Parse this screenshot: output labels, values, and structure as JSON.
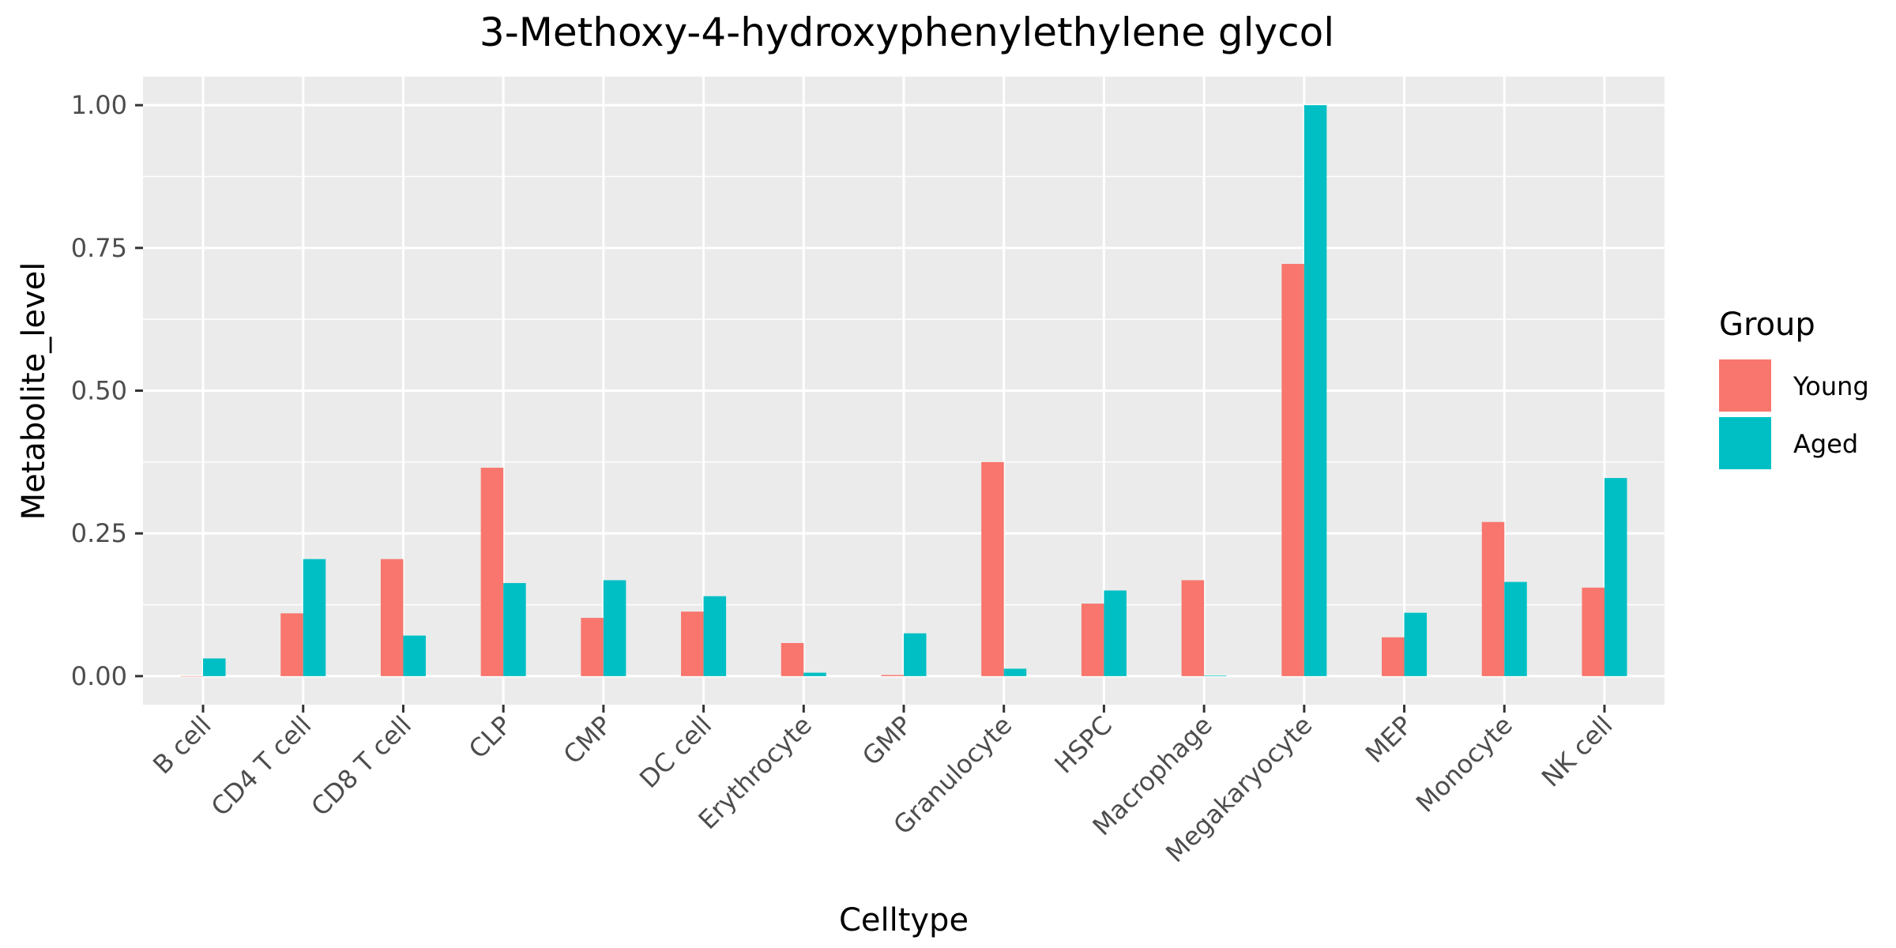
{
  "chart_data": {
    "type": "bar",
    "title": "3-Methoxy-4-hydroxyphenylethylene glycol",
    "xlabel": "Celltype",
    "ylabel": "Metabolite_level",
    "ylim": [
      -0.05,
      1.05
    ],
    "yticks": [
      0.0,
      0.25,
      0.5,
      0.75,
      1.0
    ],
    "ytick_labels": [
      "0.00",
      "0.25",
      "0.50",
      "0.75",
      "1.00"
    ],
    "grid": true,
    "legend_position": "right",
    "categories": [
      "B cell",
      "CD4 T cell",
      "CD8 T cell",
      "CLP",
      "CMP",
      "DC cell",
      "Erythrocyte",
      "GMP",
      "Granulocyte",
      "HSPC",
      "Macrophage",
      "Megakaryocyte",
      "MEP",
      "Monocyte",
      "NK cell"
    ],
    "series": [
      {
        "name": "Young",
        "color": "#F8766D",
        "values": [
          0.0,
          0.11,
          0.205,
          0.365,
          0.102,
          0.113,
          0.058,
          0.002,
          0.375,
          0.127,
          0.168,
          0.722,
          0.068,
          0.27,
          0.155
        ]
      },
      {
        "name": "Aged",
        "color": "#00BFC4",
        "values": [
          0.031,
          0.205,
          0.071,
          0.163,
          0.168,
          0.14,
          0.006,
          0.075,
          0.013,
          0.15,
          0.001,
          1.0,
          0.111,
          0.165,
          0.347
        ]
      }
    ]
  },
  "legend": {
    "title": "Group"
  }
}
